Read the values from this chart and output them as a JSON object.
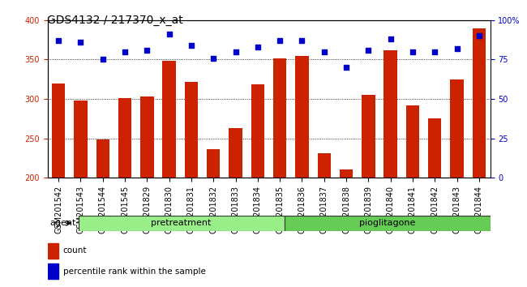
{
  "title": "GDS4132 / 217370_x_at",
  "categories": [
    "GSM201542",
    "GSM201543",
    "GSM201544",
    "GSM201545",
    "GSM201829",
    "GSM201830",
    "GSM201831",
    "GSM201832",
    "GSM201833",
    "GSM201834",
    "GSM201835",
    "GSM201836",
    "GSM201837",
    "GSM201838",
    "GSM201839",
    "GSM201840",
    "GSM201841",
    "GSM201842",
    "GSM201843",
    "GSM201844"
  ],
  "bar_values": [
    320,
    298,
    249,
    301,
    303,
    348,
    322,
    236,
    263,
    319,
    352,
    355,
    231,
    211,
    305,
    362,
    292,
    275,
    325,
    390
  ],
  "dot_values": [
    87,
    86,
    75,
    80,
    81,
    91,
    84,
    76,
    80,
    83,
    87,
    87,
    80,
    70,
    81,
    88,
    80,
    80,
    82,
    90
  ],
  "bar_color": "#cc2200",
  "dot_color": "#0000cc",
  "ylim": [
    200,
    400
  ],
  "y2lim": [
    0,
    100
  ],
  "yticks": [
    200,
    250,
    300,
    350,
    400
  ],
  "y2ticks": [
    0,
    25,
    50,
    75,
    100
  ],
  "y2ticklabels": [
    "0",
    "25",
    "50",
    "75",
    "100%"
  ],
  "grid_values": [
    250,
    300,
    350
  ],
  "group_defs": [
    {
      "label": "pretreatment",
      "xstart": 0,
      "xend": 10,
      "color": "#99ee88"
    },
    {
      "label": "pioglitagone",
      "xstart": 10,
      "xend": 20,
      "color": "#66cc55"
    }
  ],
  "agent_label": "agent",
  "legend": [
    {
      "label": "count",
      "color": "#cc2200"
    },
    {
      "label": "percentile rank within the sample",
      "color": "#0000cc"
    }
  ],
  "panel_color": "#ffffff",
  "title_fontsize": 10,
  "tick_fontsize": 7,
  "label_fontsize": 8,
  "group_fontsize": 8,
  "legend_fontsize": 7.5
}
